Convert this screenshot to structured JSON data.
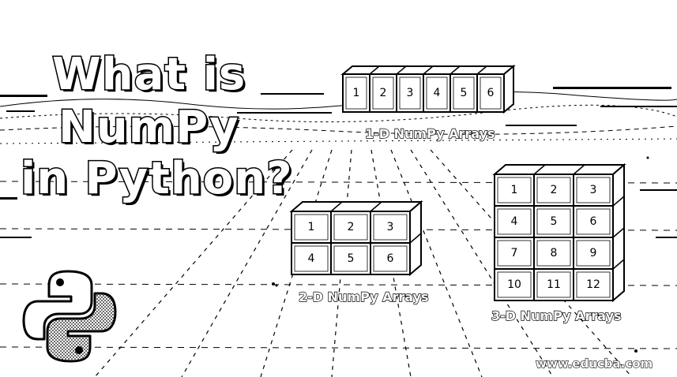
{
  "title": {
    "line1": "What is",
    "line2": "NumPy",
    "line3": "in Python?"
  },
  "array_1d": {
    "caption": "1-D NumPy Arrays",
    "values": [
      1,
      2,
      3,
      4,
      5,
      6
    ]
  },
  "array_2d": {
    "caption": "2-D NumPy Arrays",
    "rows": [
      [
        1,
        2,
        3
      ],
      [
        4,
        5,
        6
      ]
    ]
  },
  "array_3d": {
    "caption": "3-D NumPy Arrays",
    "rows": [
      [
        1,
        2,
        3
      ],
      [
        4,
        5,
        6
      ],
      [
        7,
        8,
        9
      ],
      [
        10,
        11,
        12
      ]
    ]
  },
  "logo": {
    "icon": "python-logo-icon"
  },
  "watermark": "www.educba.com"
}
